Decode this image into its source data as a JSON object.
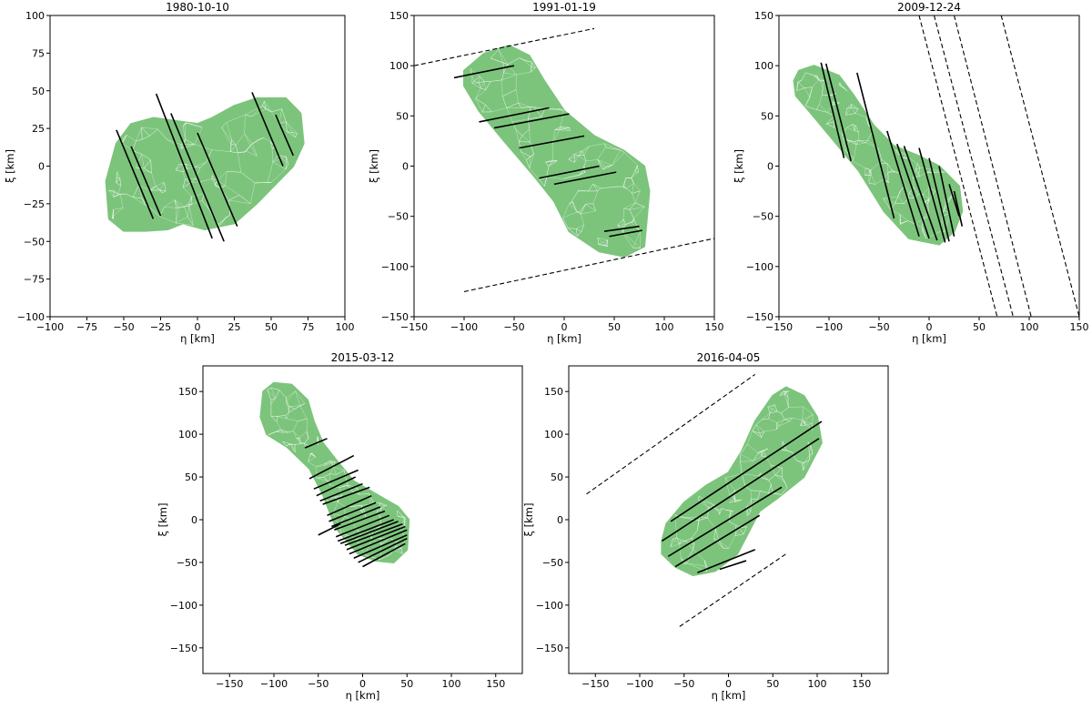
{
  "chart_data": [
    {
      "type": "scatter",
      "title": "1980-10-10",
      "xlabel": "η [km]",
      "ylabel": "ξ [km]",
      "xlim": [
        -100,
        100
      ],
      "ylim": [
        -100,
        100
      ],
      "xticks": [
        -100,
        -75,
        -50,
        -25,
        0,
        25,
        50,
        75,
        100
      ],
      "yticks": [
        -100,
        -75,
        -50,
        -25,
        0,
        25,
        50,
        75,
        100
      ],
      "shape": [
        [
          -60,
          -35
        ],
        [
          -62,
          -10
        ],
        [
          -55,
          15
        ],
        [
          -45,
          28
        ],
        [
          -30,
          32
        ],
        [
          -15,
          30
        ],
        [
          0,
          28
        ],
        [
          10,
          32
        ],
        [
          25,
          40
        ],
        [
          40,
          45
        ],
        [
          60,
          45
        ],
        [
          70,
          35
        ],
        [
          72,
          15
        ],
        [
          65,
          0
        ],
        [
          55,
          -10
        ],
        [
          40,
          -25
        ],
        [
          25,
          -38
        ],
        [
          5,
          -42
        ],
        [
          -10,
          -38
        ],
        [
          -20,
          -42
        ],
        [
          -35,
          -43
        ],
        [
          -50,
          -43
        ]
      ],
      "chords": [
        [
          [
            -55,
            24
          ],
          [
            -30,
            -35
          ]
        ],
        [
          [
            -45,
            13
          ],
          [
            -25,
            -33
          ]
        ],
        [
          [
            -28,
            48
          ],
          [
            10,
            -48
          ]
        ],
        [
          [
            -18,
            35
          ],
          [
            18,
            -50
          ]
        ],
        [
          [
            0,
            22
          ],
          [
            27,
            -40
          ]
        ],
        [
          [
            37,
            49
          ],
          [
            58,
            0
          ]
        ],
        [
          [
            53,
            34
          ],
          [
            65,
            7
          ]
        ]
      ],
      "dashed": []
    },
    {
      "type": "scatter",
      "title": "1991-01-19",
      "xlabel": "η [km]",
      "ylabel": "ξ [km]",
      "xlim": [
        -150,
        150
      ],
      "ylim": [
        -150,
        150
      ],
      "xticks": [
        -150,
        -100,
        -50,
        0,
        50,
        100,
        150
      ],
      "yticks": [
        -150,
        -100,
        -50,
        0,
        50,
        100,
        150
      ],
      "shape": [
        [
          -100,
          80
        ],
        [
          -100,
          95
        ],
        [
          -80,
          112
        ],
        [
          -55,
          120
        ],
        [
          -35,
          110
        ],
        [
          -20,
          85
        ],
        [
          0,
          55
        ],
        [
          30,
          30
        ],
        [
          60,
          15
        ],
        [
          80,
          0
        ],
        [
          85,
          -25
        ],
        [
          80,
          -80
        ],
        [
          60,
          -90
        ],
        [
          35,
          -85
        ],
        [
          5,
          -65
        ],
        [
          -10,
          -35
        ],
        [
          -30,
          -10
        ],
        [
          -60,
          25
        ],
        [
          -85,
          55
        ]
      ],
      "chords": [
        [
          [
            -110,
            88
          ],
          [
            -50,
            100
          ]
        ],
        [
          [
            -85,
            44
          ],
          [
            -15,
            58
          ]
        ],
        [
          [
            -70,
            38
          ],
          [
            5,
            52
          ]
        ],
        [
          [
            -45,
            18
          ],
          [
            20,
            30
          ]
        ],
        [
          [
            -25,
            -12
          ],
          [
            35,
            0
          ]
        ],
        [
          [
            -10,
            -18
          ],
          [
            52,
            -6
          ]
        ],
        [
          [
            40,
            -65
          ],
          [
            75,
            -60
          ]
        ],
        [
          [
            45,
            -70
          ],
          [
            78,
            -64
          ]
        ]
      ],
      "dashed": [
        [
          [
            -150,
            100
          ],
          [
            30,
            137
          ]
        ],
        [
          [
            -100,
            -125
          ],
          [
            150,
            -72
          ]
        ]
      ]
    },
    {
      "type": "scatter",
      "title": "2009-12-24",
      "xlabel": "η [km]",
      "ylabel": "ξ [km]",
      "xlim": [
        -150,
        150
      ],
      "ylim": [
        -150,
        150
      ],
      "xticks": [
        -150,
        -100,
        -50,
        0,
        50,
        100,
        150
      ],
      "yticks": [
        -150,
        -100,
        -50,
        0,
        50,
        100,
        150
      ],
      "shape": [
        [
          -135,
          85
        ],
        [
          -130,
          95
        ],
        [
          -115,
          100
        ],
        [
          -90,
          90
        ],
        [
          -75,
          70
        ],
        [
          -55,
          40
        ],
        [
          -35,
          20
        ],
        [
          -10,
          10
        ],
        [
          10,
          0
        ],
        [
          30,
          -20
        ],
        [
          33,
          -45
        ],
        [
          25,
          -65
        ],
        [
          10,
          -78
        ],
        [
          -20,
          -72
        ],
        [
          -45,
          -45
        ],
        [
          -70,
          -5
        ],
        [
          -95,
          25
        ],
        [
          -120,
          55
        ],
        [
          -133,
          70
        ]
      ],
      "chords": [
        [
          [
            -108,
            103
          ],
          [
            -85,
            8
          ]
        ],
        [
          [
            -103,
            102
          ],
          [
            -78,
            5
          ]
        ],
        [
          [
            -72,
            93
          ],
          [
            -35,
            -52
          ]
        ],
        [
          [
            -42,
            35
          ],
          [
            -10,
            -70
          ]
        ],
        [
          [
            -32,
            22
          ],
          [
            0,
            -72
          ]
        ],
        [
          [
            -25,
            20
          ],
          [
            8,
            -74
          ]
        ],
        [
          [
            -10,
            18
          ],
          [
            16,
            -76
          ]
        ],
        [
          [
            0,
            8
          ],
          [
            20,
            -75
          ]
        ],
        [
          [
            10,
            0
          ],
          [
            25,
            -70
          ]
        ],
        [
          [
            20,
            -18
          ],
          [
            30,
            -50
          ]
        ],
        [
          [
            25,
            -25
          ],
          [
            33,
            -60
          ]
        ]
      ],
      "dashed": [
        [
          [
            -10,
            150
          ],
          [
            68,
            -150
          ]
        ],
        [
          [
            5,
            150
          ],
          [
            84,
            -150
          ]
        ],
        [
          [
            25,
            150
          ],
          [
            102,
            -150
          ]
        ],
        [
          [
            72,
            150
          ],
          [
            150,
            -150
          ]
        ]
      ]
    },
    {
      "type": "scatter",
      "title": "2015-03-12",
      "xlabel": "η [km]",
      "ylabel": "ξ [km]",
      "xlim": [
        -180,
        180
      ],
      "ylim": [
        -180,
        180
      ],
      "xticks": [
        -150,
        -100,
        -50,
        0,
        50,
        100,
        150
      ],
      "yticks": [
        -150,
        -100,
        -50,
        0,
        50,
        100,
        150
      ],
      "shape": [
        [
          -115,
          120
        ],
        [
          -112,
          150
        ],
        [
          -100,
          160
        ],
        [
          -80,
          158
        ],
        [
          -62,
          140
        ],
        [
          -55,
          115
        ],
        [
          -45,
          90
        ],
        [
          -30,
          70
        ],
        [
          -10,
          45
        ],
        [
          15,
          30
        ],
        [
          40,
          15
        ],
        [
          52,
          0
        ],
        [
          50,
          -35
        ],
        [
          35,
          -50
        ],
        [
          15,
          -48
        ],
        [
          -5,
          -40
        ],
        [
          -30,
          -10
        ],
        [
          -45,
          30
        ],
        [
          -60,
          60
        ],
        [
          -85,
          85
        ],
        [
          -108,
          100
        ]
      ],
      "chords": [
        [
          [
            -65,
            84
          ],
          [
            -40,
            95
          ]
        ],
        [
          [
            -60,
            48
          ],
          [
            -10,
            75
          ]
        ],
        [
          [
            -55,
            36
          ],
          [
            -5,
            58
          ]
        ],
        [
          [
            -52,
            28
          ],
          [
            -8,
            50
          ]
        ],
        [
          [
            -48,
            22
          ],
          [
            0,
            42
          ]
        ],
        [
          [
            -45,
            18
          ],
          [
            8,
            38
          ]
        ],
        [
          [
            -40,
            5
          ],
          [
            10,
            28
          ]
        ],
        [
          [
            -38,
            -2
          ],
          [
            15,
            20
          ]
        ],
        [
          [
            -35,
            -8
          ],
          [
            20,
            15
          ]
        ],
        [
          [
            -32,
            -12
          ],
          [
            25,
            10
          ]
        ],
        [
          [
            -30,
            -20
          ],
          [
            30,
            5
          ]
        ],
        [
          [
            -28,
            -25
          ],
          [
            35,
            0
          ]
        ],
        [
          [
            -25,
            -28
          ],
          [
            40,
            -2
          ]
        ],
        [
          [
            -20,
            -30
          ],
          [
            45,
            -5
          ]
        ],
        [
          [
            -18,
            -35
          ],
          [
            48,
            -8
          ]
        ],
        [
          [
            -15,
            -40
          ],
          [
            50,
            -12
          ]
        ],
        [
          [
            -10,
            -45
          ],
          [
            50,
            -18
          ]
        ],
        [
          [
            -5,
            -50
          ],
          [
            50,
            -22
          ]
        ],
        [
          [
            0,
            -55
          ],
          [
            48,
            -28
          ]
        ],
        [
          [
            -50,
            -18
          ],
          [
            -25,
            -5
          ]
        ]
      ],
      "dashed": []
    },
    {
      "type": "scatter",
      "title": "2016-04-05",
      "xlabel": "η [km]",
      "ylabel": "ξ [km]",
      "xlim": [
        -180,
        180
      ],
      "ylim": [
        -180,
        180
      ],
      "xticks": [
        -150,
        -100,
        -50,
        0,
        50,
        100,
        150
      ],
      "yticks": [
        -150,
        -100,
        -50,
        0,
        50,
        100,
        150
      ],
      "shape": [
        [
          -75,
          -25
        ],
        [
          -70,
          -5
        ],
        [
          -50,
          20
        ],
        [
          -25,
          40
        ],
        [
          0,
          55
        ],
        [
          15,
          80
        ],
        [
          30,
          115
        ],
        [
          50,
          145
        ],
        [
          65,
          155
        ],
        [
          85,
          145
        ],
        [
          100,
          120
        ],
        [
          105,
          90
        ],
        [
          85,
          50
        ],
        [
          55,
          25
        ],
        [
          35,
          10
        ],
        [
          10,
          -40
        ],
        [
          -15,
          -60
        ],
        [
          -40,
          -65
        ],
        [
          -60,
          -55
        ],
        [
          -75,
          -40
        ]
      ],
      "chords": [
        [
          [
            -65,
            -2
          ],
          [
            105,
            115
          ]
        ],
        [
          [
            -75,
            -25
          ],
          [
            102,
            95
          ]
        ],
        [
          [
            -68,
            -43
          ],
          [
            60,
            38
          ]
        ],
        [
          [
            -60,
            -55
          ],
          [
            35,
            5
          ]
        ],
        [
          [
            -35,
            -62
          ],
          [
            30,
            -35
          ]
        ],
        [
          [
            -10,
            -58
          ],
          [
            20,
            -48
          ]
        ]
      ],
      "dashed": [
        [
          [
            -160,
            30
          ],
          [
            30,
            170
          ]
        ],
        [
          [
            -55,
            -125
          ],
          [
            65,
            -40
          ]
        ]
      ]
    }
  ]
}
